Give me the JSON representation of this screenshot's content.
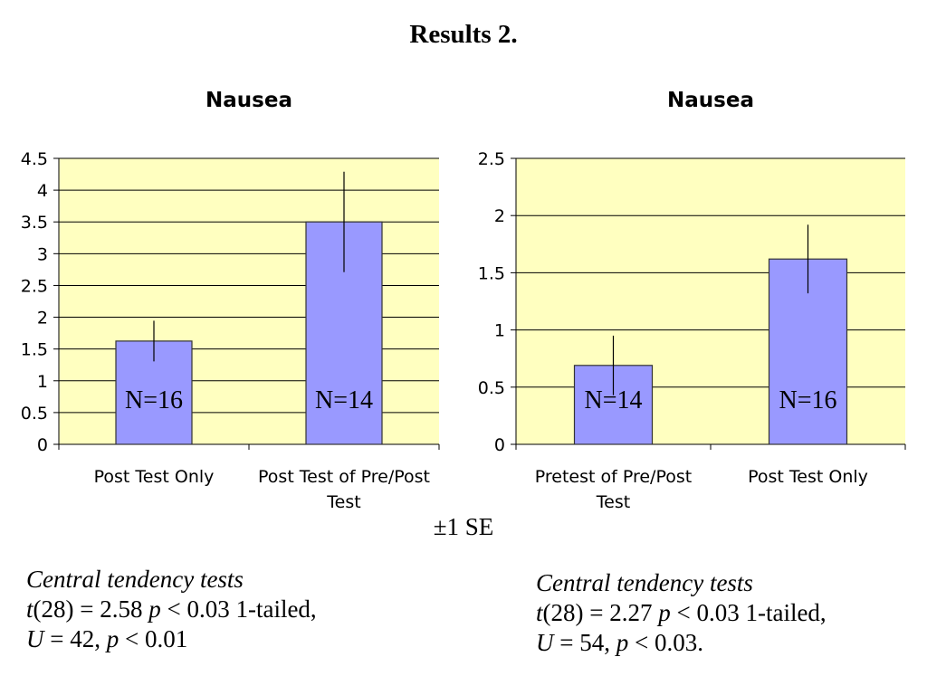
{
  "slide": {
    "title": "Results 2.",
    "error_note": "±1 SE"
  },
  "colors": {
    "plot_bg": "#FFFFC0",
    "bar_fill": "#9999FF",
    "bar_stroke": "#333333",
    "gridline": "#000000"
  },
  "chart_data": [
    {
      "type": "bar",
      "title": "Nausea",
      "categories": [
        "Post Test Only",
        "Post Test of Pre/Post Test"
      ],
      "category_lines": [
        [
          "Post Test Only"
        ],
        [
          "Post Test of Pre/Post",
          "Test"
        ]
      ],
      "values": [
        1.625,
        3.5
      ],
      "error_bars": [
        0.32,
        0.79
      ],
      "bar_labels": [
        "N=16",
        "N=14"
      ],
      "ylim": [
        0,
        4.5
      ],
      "yticks": [
        "0",
        "0.5",
        "1",
        "1.5",
        "2",
        "2.5",
        "3",
        "3.5",
        "4",
        "4.5"
      ],
      "ytick_values": [
        0,
        0.5,
        1,
        1.5,
        2,
        2.5,
        3,
        3.5,
        4,
        4.5
      ],
      "grid": true,
      "xlabel": "",
      "ylabel": ""
    },
    {
      "type": "bar",
      "title": "Nausea",
      "categories": [
        "Pretest of Pre/Post Test",
        "Post Test Only"
      ],
      "category_lines": [
        [
          "Pretest of Pre/Post",
          "Test"
        ],
        [
          "Post Test Only"
        ]
      ],
      "values": [
        0.69,
        1.62
      ],
      "error_bars": [
        0.26,
        0.3
      ],
      "bar_labels": [
        "N=14",
        "N=16"
      ],
      "ylim": [
        0,
        2.5
      ],
      "yticks": [
        "0",
        "0.5",
        "1",
        "1.5",
        "2",
        "2.5"
      ],
      "ytick_values": [
        0,
        0.5,
        1,
        1.5,
        2,
        2.5
      ],
      "grid": true,
      "xlabel": "",
      "ylabel": ""
    }
  ],
  "stats_left": {
    "heading": "Central tendency tests",
    "t_var": "t",
    "t_df": "(28) = 2.58 ",
    "t_p": "p",
    "t_rest": " < 0.03 1-tailed,",
    "u_var": "U",
    "u_mid": " = 42, ",
    "u_p": "p",
    "u_rest": " < 0.01"
  },
  "stats_right": {
    "heading": "Central tendency tests",
    "t_var": "t",
    "t_df": "(28) = 2.27 ",
    "t_p": "p",
    "t_rest": " < 0.03 1-tailed,",
    "u_var": "U",
    "u_mid": " = 54, ",
    "u_p": "p",
    "u_rest": " < 0.03."
  }
}
